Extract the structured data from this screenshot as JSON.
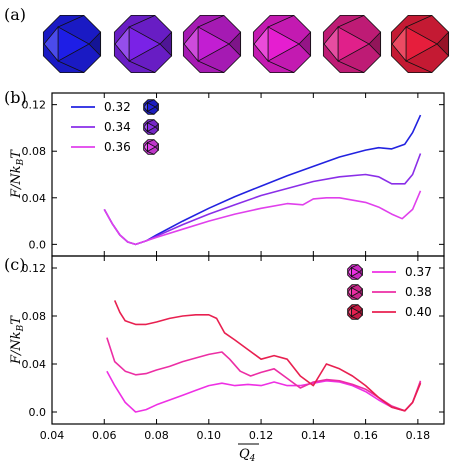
{
  "panel_labels": [
    "(a)",
    "(b)",
    "(c)"
  ],
  "shape_colors": [
    "#1e1ee6",
    "#7a22e6",
    "#c21ed2",
    "#e51ed0",
    "#e0208a",
    "#e61e3c"
  ],
  "chart_data": [
    {
      "panel": "(b)",
      "type": "line",
      "ylabel": "F/Nk_BT",
      "ylim": [
        -0.01,
        0.13
      ],
      "xlim": [
        0.04,
        0.19
      ],
      "yticks": [
        "0.0",
        "0.04",
        "0.08",
        "0.12"
      ],
      "legend": "top-left",
      "series": [
        {
          "name": "0.32",
          "color": "#2222e0",
          "x": [
            0.06,
            0.063,
            0.066,
            0.069,
            0.072,
            0.076,
            0.08,
            0.09,
            0.1,
            0.11,
            0.12,
            0.13,
            0.14,
            0.15,
            0.16,
            0.165,
            0.17,
            0.175,
            0.178,
            0.181
          ],
          "y": [
            0.03,
            0.018,
            0.008,
            0.002,
            0.0,
            0.003,
            0.008,
            0.02,
            0.031,
            0.041,
            0.05,
            0.059,
            0.067,
            0.075,
            0.081,
            0.083,
            0.082,
            0.086,
            0.096,
            0.111
          ]
        },
        {
          "name": "0.34",
          "color": "#8a2ee8",
          "x": [
            0.06,
            0.063,
            0.066,
            0.069,
            0.072,
            0.076,
            0.08,
            0.09,
            0.1,
            0.11,
            0.12,
            0.13,
            0.14,
            0.15,
            0.16,
            0.165,
            0.17,
            0.175,
            0.178,
            0.181
          ],
          "y": [
            0.03,
            0.018,
            0.008,
            0.002,
            0.0,
            0.003,
            0.007,
            0.017,
            0.026,
            0.034,
            0.042,
            0.048,
            0.054,
            0.058,
            0.06,
            0.058,
            0.052,
            0.052,
            0.06,
            0.078
          ]
        },
        {
          "name": "0.36",
          "color": "#e040ec",
          "x": [
            0.06,
            0.063,
            0.066,
            0.069,
            0.072,
            0.076,
            0.08,
            0.09,
            0.1,
            0.11,
            0.12,
            0.13,
            0.136,
            0.14,
            0.145,
            0.15,
            0.16,
            0.165,
            0.17,
            0.174,
            0.178,
            0.181
          ],
          "y": [
            0.03,
            0.018,
            0.008,
            0.002,
            0.0,
            0.003,
            0.006,
            0.013,
            0.02,
            0.026,
            0.031,
            0.035,
            0.034,
            0.039,
            0.04,
            0.04,
            0.036,
            0.032,
            0.026,
            0.022,
            0.03,
            0.046
          ]
        }
      ]
    },
    {
      "panel": "(c)",
      "type": "line",
      "ylabel": "F/Nk_BT",
      "xlabel": "Q4",
      "ylim": [
        -0.01,
        0.13
      ],
      "xlim": [
        0.04,
        0.19
      ],
      "yticks": [
        "0.0",
        "0.04",
        "0.08",
        "0.12"
      ],
      "xticks": [
        "0.04",
        "0.06",
        "0.08",
        "0.10",
        "0.12",
        "0.14",
        "0.16",
        "0.18"
      ],
      "legend": "top-right",
      "series": [
        {
          "name": "0.37",
          "color": "#ee30e4",
          "x": [
            0.061,
            0.064,
            0.068,
            0.072,
            0.076,
            0.08,
            0.085,
            0.09,
            0.095,
            0.1,
            0.105,
            0.11,
            0.115,
            0.12,
            0.125,
            0.13,
            0.135,
            0.14,
            0.145,
            0.15,
            0.155,
            0.16,
            0.165,
            0.17,
            0.175,
            0.178,
            0.181
          ],
          "y": [
            0.034,
            0.022,
            0.008,
            0.0,
            0.002,
            0.006,
            0.01,
            0.014,
            0.018,
            0.022,
            0.024,
            0.022,
            0.023,
            0.022,
            0.025,
            0.022,
            0.022,
            0.024,
            0.026,
            0.025,
            0.022,
            0.017,
            0.01,
            0.004,
            0.001,
            0.008,
            0.025
          ]
        },
        {
          "name": "0.38",
          "color": "#ec2ea4",
          "x": [
            0.061,
            0.064,
            0.068,
            0.072,
            0.076,
            0.08,
            0.085,
            0.09,
            0.095,
            0.1,
            0.105,
            0.108,
            0.112,
            0.116,
            0.12,
            0.125,
            0.13,
            0.135,
            0.14,
            0.145,
            0.15,
            0.155,
            0.16,
            0.165,
            0.17,
            0.175,
            0.178,
            0.181
          ],
          "y": [
            0.062,
            0.042,
            0.034,
            0.031,
            0.032,
            0.035,
            0.038,
            0.042,
            0.045,
            0.048,
            0.05,
            0.044,
            0.034,
            0.03,
            0.033,
            0.036,
            0.028,
            0.02,
            0.025,
            0.027,
            0.026,
            0.023,
            0.019,
            0.012,
            0.005,
            0.001,
            0.008,
            0.026
          ]
        },
        {
          "name": "0.40",
          "color": "#e82050",
          "x": [
            0.064,
            0.066,
            0.068,
            0.072,
            0.076,
            0.08,
            0.085,
            0.09,
            0.095,
            0.1,
            0.103,
            0.106,
            0.11,
            0.115,
            0.12,
            0.125,
            0.13,
            0.135,
            0.14,
            0.145,
            0.15,
            0.155,
            0.16,
            0.165,
            0.17,
            0.175,
            0.178,
            0.181
          ],
          "y": [
            0.093,
            0.083,
            0.076,
            0.073,
            0.073,
            0.075,
            0.078,
            0.08,
            0.081,
            0.081,
            0.078,
            0.066,
            0.06,
            0.052,
            0.044,
            0.047,
            0.044,
            0.03,
            0.022,
            0.04,
            0.036,
            0.03,
            0.022,
            0.012,
            0.004,
            0.001,
            0.008,
            0.024
          ]
        }
      ]
    }
  ]
}
